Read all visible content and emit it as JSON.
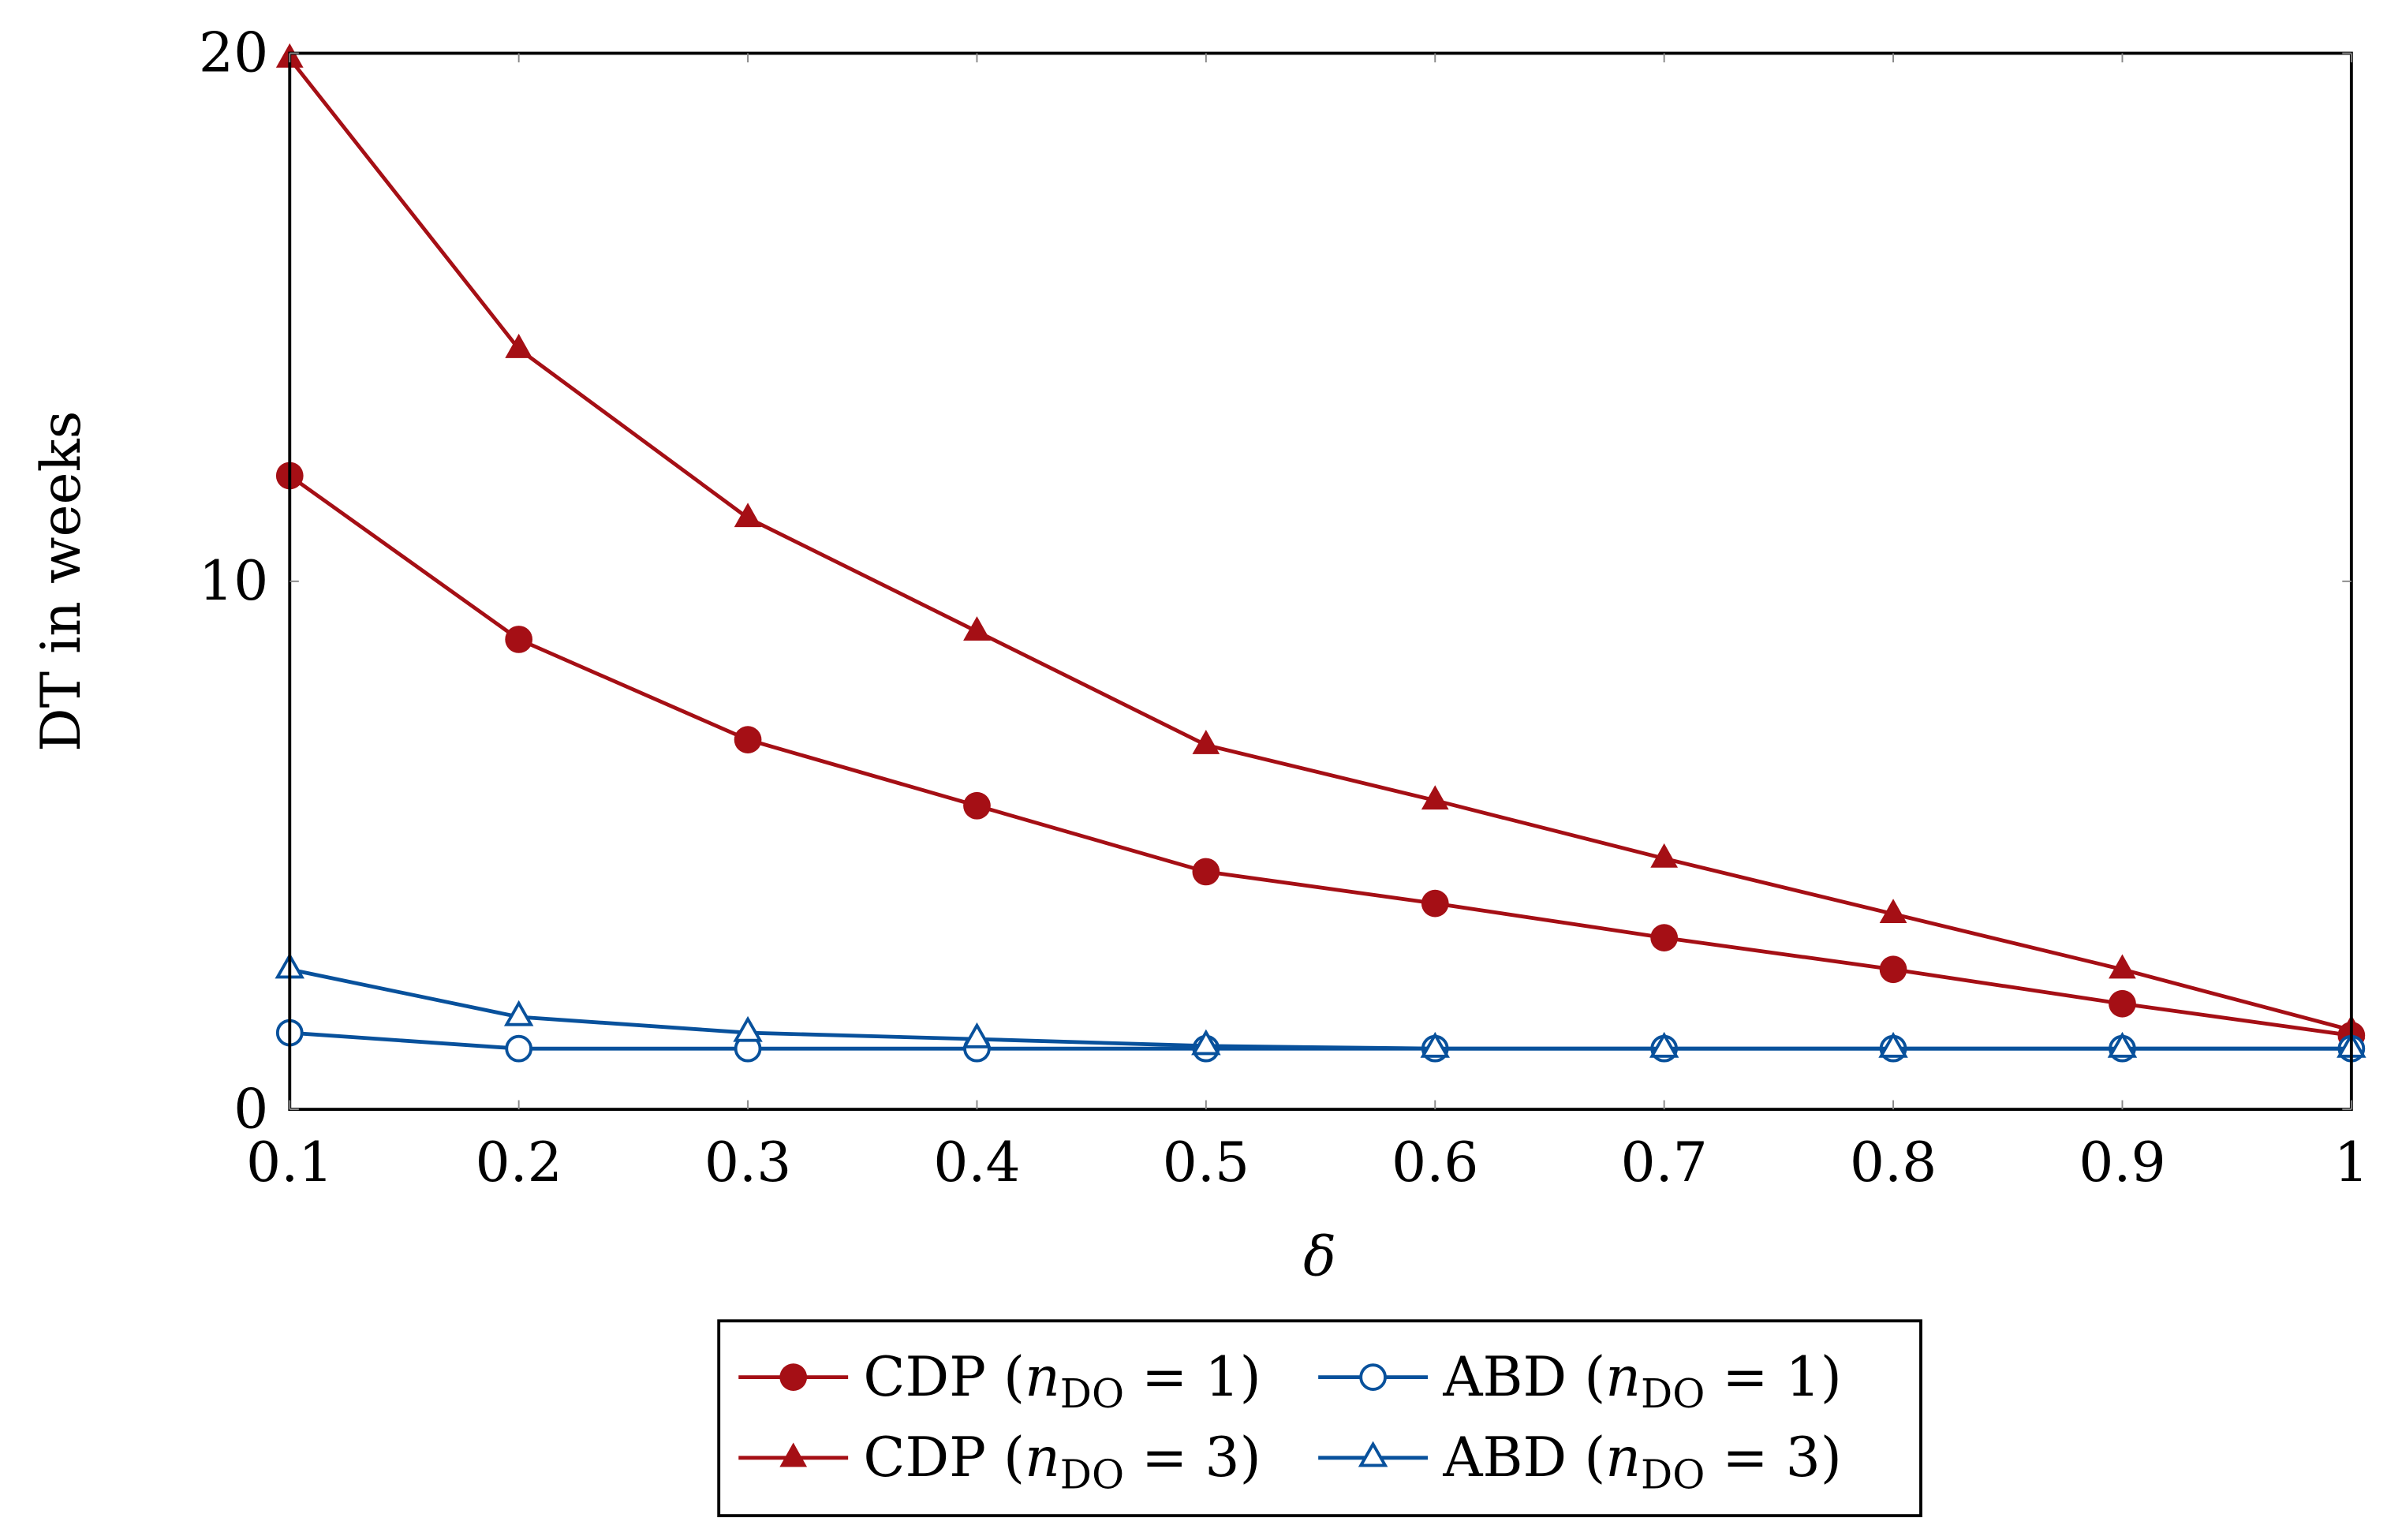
{
  "chart_data": {
    "type": "line",
    "title": "",
    "xlabel": "δ",
    "ylabel": "DT in weeks",
    "xlim": [
      0.1,
      1
    ],
    "ylim": [
      0,
      20
    ],
    "x_ticks": [
      "0.1",
      "0.2",
      "0.3",
      "0.4",
      "0.5",
      "0.6",
      "0.7",
      "0.8",
      "0.9",
      "1"
    ],
    "y_ticks": [
      "0",
      "10",
      "20"
    ],
    "grid": false,
    "legend_position": "bottom-center",
    "x": [
      0.1,
      0.2,
      0.3,
      0.4,
      0.5,
      0.6,
      0.7,
      0.8,
      0.9,
      1.0
    ],
    "series": [
      {
        "name": "CDP (n_DO = 1)",
        "label_main": "CDP (",
        "label_var": "n",
        "label_sub": "DO",
        "label_rest": " = 1)",
        "color": "#a50f15",
        "marker": "filled-circle",
        "values": [
          12.0,
          8.9,
          7.0,
          5.75,
          4.5,
          3.9,
          3.25,
          2.65,
          2.0,
          1.4
        ]
      },
      {
        "name": "CDP (n_DO = 3)",
        "label_main": "CDP (",
        "label_var": "n",
        "label_sub": "DO",
        "label_rest": " = 3)",
        "color": "#a50f15",
        "marker": "filled-triangle",
        "values": [
          19.9,
          14.4,
          11.2,
          9.05,
          6.9,
          5.85,
          4.75,
          3.7,
          2.65,
          1.5
        ]
      },
      {
        "name": "ABD (n_DO = 1)",
        "label_main": "ABD (",
        "label_var": "n",
        "label_sub": "DO",
        "label_rest": " = 1)",
        "color": "#08519c",
        "marker": "open-circle",
        "values": [
          1.45,
          1.15,
          1.15,
          1.15,
          1.15,
          1.15,
          1.15,
          1.15,
          1.15,
          1.15
        ]
      },
      {
        "name": "ABD (n_DO = 3)",
        "label_main": "ABD (",
        "label_var": "n",
        "label_sub": "DO",
        "label_rest": " = 3)",
        "color": "#08519c",
        "marker": "open-triangle",
        "values": [
          2.65,
          1.75,
          1.45,
          1.33,
          1.2,
          1.15,
          1.15,
          1.15,
          1.15,
          1.15
        ]
      }
    ]
  }
}
